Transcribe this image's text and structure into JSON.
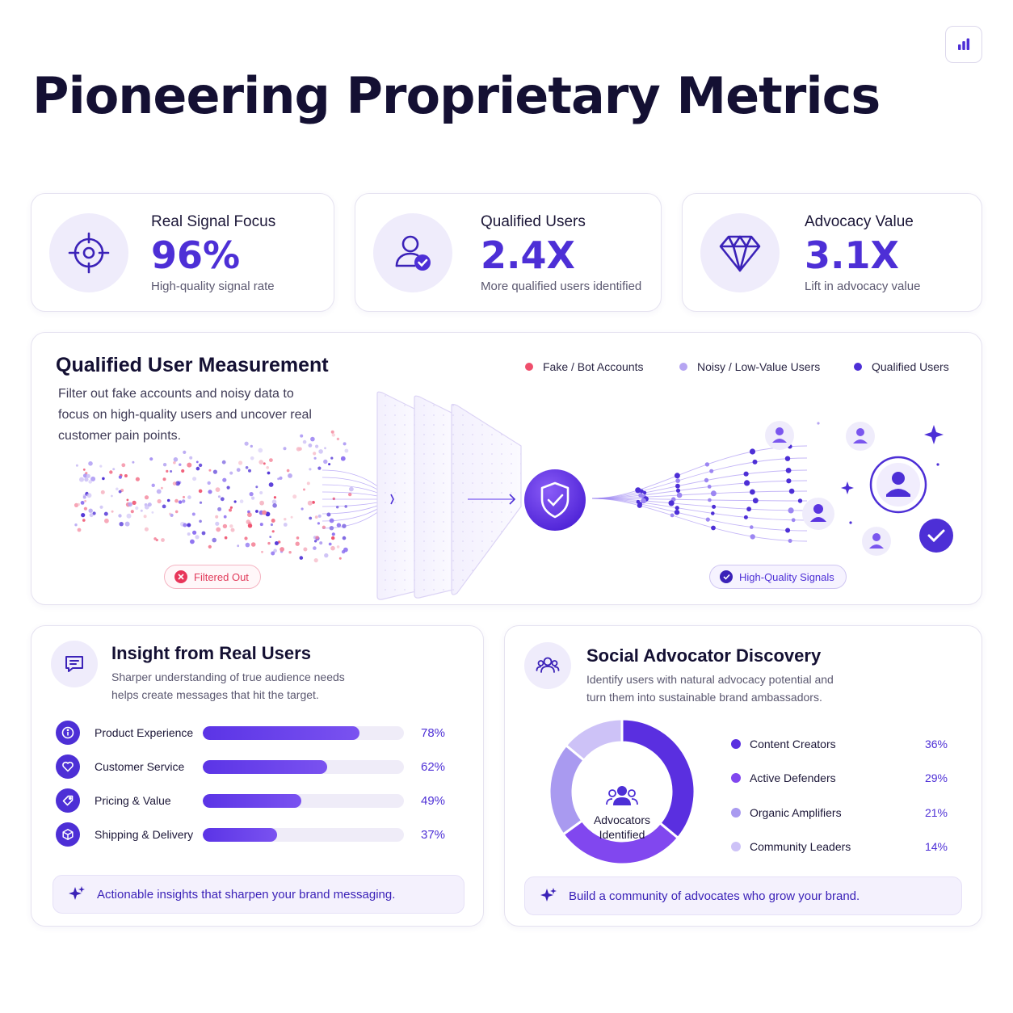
{
  "page": {
    "title": "Pioneering Proprietary Metrics",
    "corner_icon": "bar-chart-icon"
  },
  "kpis": [
    {
      "label": "Real Signal Focus",
      "value": "96%",
      "sub": "High-quality signal rate",
      "icon": "target-icon"
    },
    {
      "label": "Qualified Users",
      "value": "2.4X",
      "sub": "More qualified users identified",
      "icon": "user-check-icon"
    },
    {
      "label": "Advocacy Value",
      "value": "3.1X",
      "sub": "Lift in advocacy value",
      "icon": "diamond-icon"
    }
  ],
  "measurement": {
    "title": "Qualified User Measurement",
    "description": "Filter out fake accounts and noisy data to focus on high-quality users and uncover real customer pain points.",
    "legend": [
      {
        "label": "Fake / Bot Accounts",
        "color": "#ef4f6c"
      },
      {
        "label": "Noisy / Low-Value Users",
        "color": "#b6a5f2"
      },
      {
        "label": "Qualified Users",
        "color": "#4d2fd6"
      }
    ],
    "filtered_label": "Filtered Out",
    "signals_label": "High-Quality Signals"
  },
  "insight": {
    "title": "Insight from Real Users",
    "description": "Sharper understanding of true audience needs helps create messages that hit the target.",
    "bars": [
      {
        "label": "Product Experience",
        "value": 78,
        "display": "78%",
        "icon": "info-icon"
      },
      {
        "label": "Customer Service",
        "value": 62,
        "display": "62%",
        "icon": "heart-icon"
      },
      {
        "label": "Pricing & Value",
        "value": 49,
        "display": "49%",
        "icon": "tag-icon"
      },
      {
        "label": "Shipping & Delivery",
        "value": 37,
        "display": "37%",
        "icon": "box-icon"
      }
    ],
    "banner": "Actionable insights that sharpen your brand messaging."
  },
  "advocate": {
    "title": "Social Advocator Discovery",
    "description": "Identify users with natural advocacy potential and turn them into sustainable brand ambassadors.",
    "center_line1": "Advocators",
    "center_line2": "Identified",
    "segments": [
      {
        "label": "Content Creators",
        "value": 36,
        "display": "36%",
        "color": "#5a2fe0"
      },
      {
        "label": "Active Defenders",
        "value": 29,
        "display": "29%",
        "color": "#8147ef"
      },
      {
        "label": "Organic Amplifiers",
        "value": 21,
        "display": "21%",
        "color": "#a99af0"
      },
      {
        "label": "Community Leaders",
        "value": 14,
        "display": "14%",
        "color": "#cdc2f7"
      }
    ],
    "banner": "Build a community of advocates who grow your brand."
  }
}
